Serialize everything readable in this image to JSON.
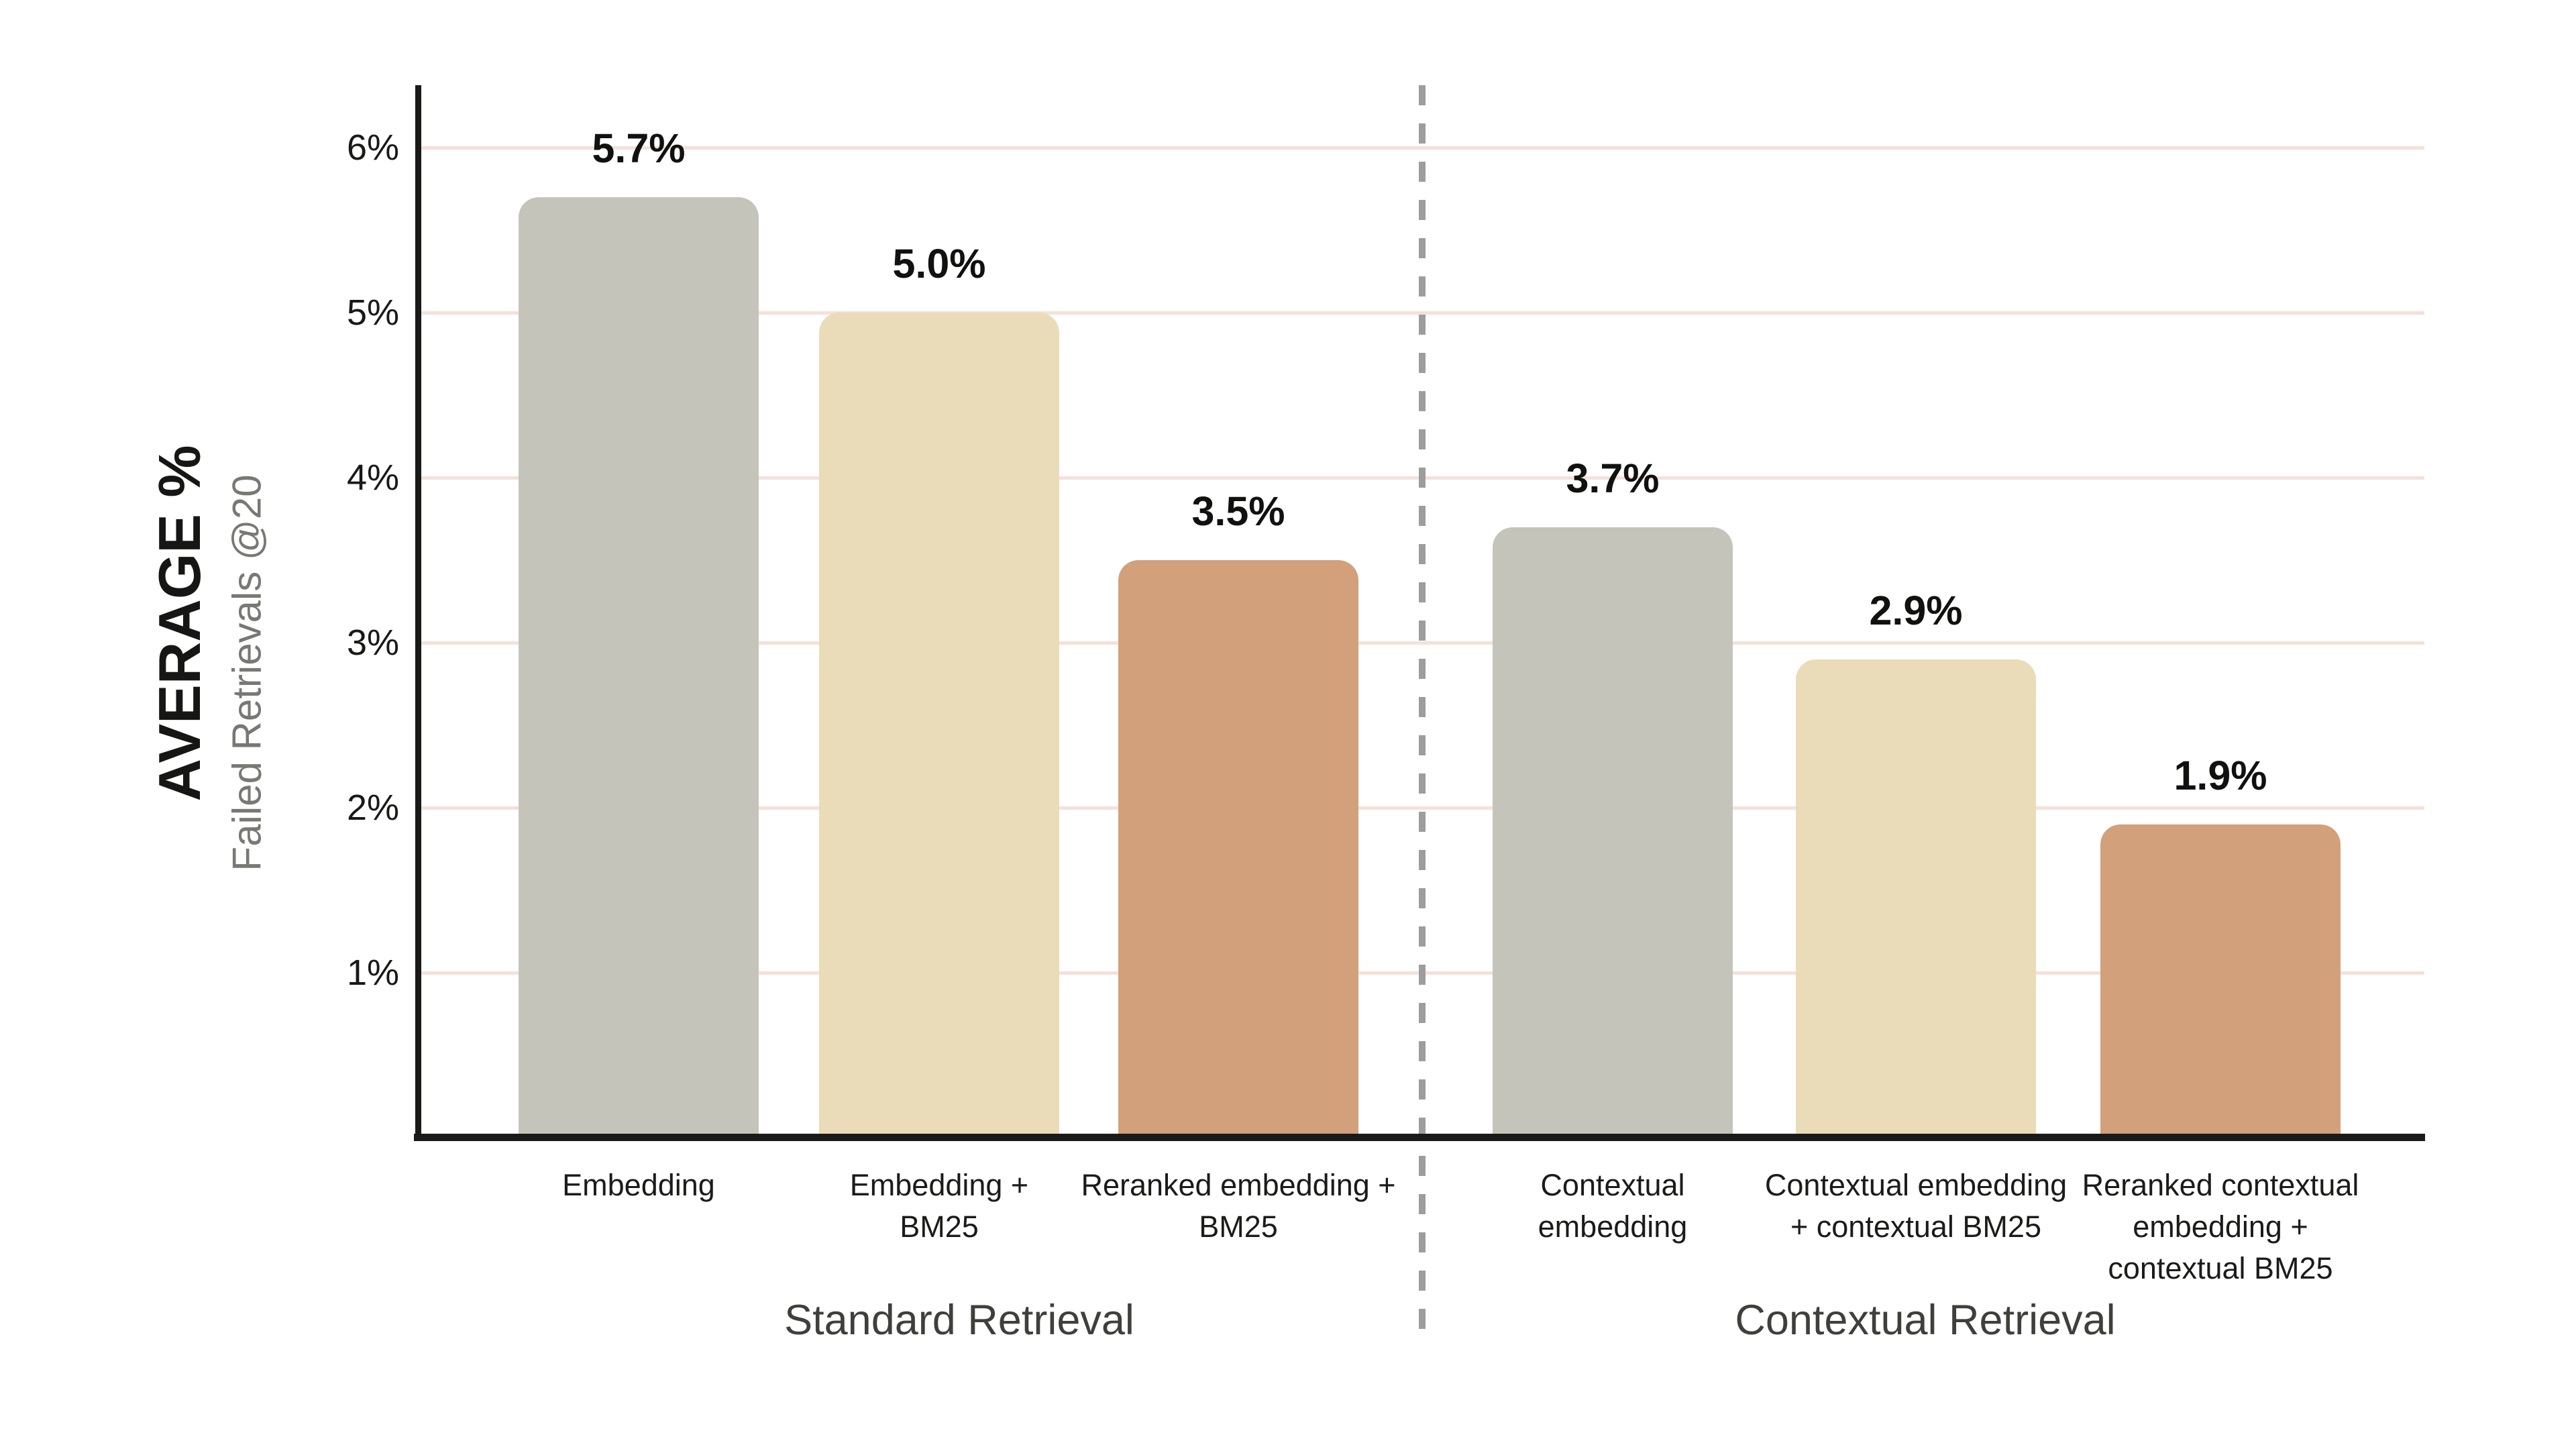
{
  "page": {
    "background_color": "#ffffff"
  },
  "chart_data": {
    "type": "bar",
    "title": "",
    "ylabel": "AVERAGE %",
    "ylabel_sub": "Failed Retrievals @20",
    "xlabel": "",
    "ylim": [
      0,
      6.4
    ],
    "grid": true,
    "gridline_color": "#f4e1da",
    "axis_color": "#1a1a18",
    "value_label_color": "#111110",
    "separator": {
      "style": "dashed",
      "color": "#9d9d9d"
    },
    "y_ticks": [
      {
        "value": 1,
        "label": "1%"
      },
      {
        "value": 2,
        "label": "2%"
      },
      {
        "value": 3,
        "label": "3%"
      },
      {
        "value": 4,
        "label": "4%"
      },
      {
        "value": 5,
        "label": "5%"
      },
      {
        "value": 6,
        "label": "6%"
      }
    ],
    "groups": [
      {
        "label": "Standard Retrieval",
        "bars": [
          {
            "category": "Embedding",
            "category_lines": [
              "Embedding"
            ],
            "value": 5.7,
            "value_label": "5.7%",
            "color": "#c4c4bb"
          },
          {
            "category": "Embedding + BM25",
            "category_lines": [
              "Embedding +",
              "BM25"
            ],
            "value": 5.0,
            "value_label": "5.0%",
            "color": "#eadcb8"
          },
          {
            "category": "Reranked embedding + BM25",
            "category_lines": [
              "Reranked embedding +",
              "BM25"
            ],
            "value": 3.5,
            "value_label": "3.5%",
            "color": "#d2a07a"
          }
        ]
      },
      {
        "label": "Contextual Retrieval",
        "bars": [
          {
            "category": "Contextual embedding",
            "category_lines": [
              "Contextual",
              "embedding"
            ],
            "value": 3.7,
            "value_label": "3.7%",
            "color": "#c4c4bb"
          },
          {
            "category": "Contextual embedding + contextual BM25",
            "category_lines": [
              "Contextual embedding",
              "+ contextual BM25"
            ],
            "value": 2.9,
            "value_label": "2.9%",
            "color": "#eadcb8"
          },
          {
            "category": "Reranked contextual embedding + contextual BM25",
            "category_lines": [
              "Reranked contextual",
              "embedding +",
              "contextual BM25"
            ],
            "value": 1.9,
            "value_label": "1.9%",
            "color": "#d2a07a"
          }
        ]
      }
    ]
  }
}
